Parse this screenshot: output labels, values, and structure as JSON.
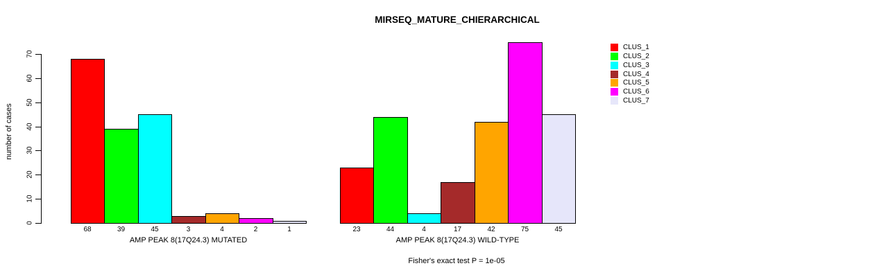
{
  "chart_data": {
    "type": "bar",
    "title": "MIRSEQ_MATURE_CHIERARCHICAL",
    "ylabel": "number of cases",
    "ylim": [
      0,
      70
    ],
    "yticks": [
      0,
      10,
      20,
      30,
      40,
      50,
      60,
      70
    ],
    "grid": false,
    "legend_position": "right",
    "legend": [
      {
        "label": "CLUS_1",
        "color": "#FF0000"
      },
      {
        "label": "CLUS_2",
        "color": "#00FF00"
      },
      {
        "label": "CLUS_3",
        "color": "#00FFFF"
      },
      {
        "label": "CLUS_4",
        "color": "#A52A2A"
      },
      {
        "label": "CLUS_5",
        "color": "#FFA500"
      },
      {
        "label": "CLUS_6",
        "color": "#FF00FF"
      },
      {
        "label": "CLUS_7",
        "color": "#E6E6FA"
      }
    ],
    "groups": [
      {
        "label": "AMP PEAK 8(17Q24.3) MUTATED",
        "values": [
          68,
          39,
          45,
          3,
          4,
          2,
          1
        ]
      },
      {
        "label": "AMP PEAK 8(17Q24.3) WILD-TYPE",
        "values": [
          23,
          44,
          4,
          17,
          42,
          75,
          45
        ]
      }
    ],
    "footnote": "Fisher's exact test P = 1e-05",
    "bar_border_color": "#000000",
    "text_color": "#000000",
    "background_color": "#FFFFFF"
  }
}
